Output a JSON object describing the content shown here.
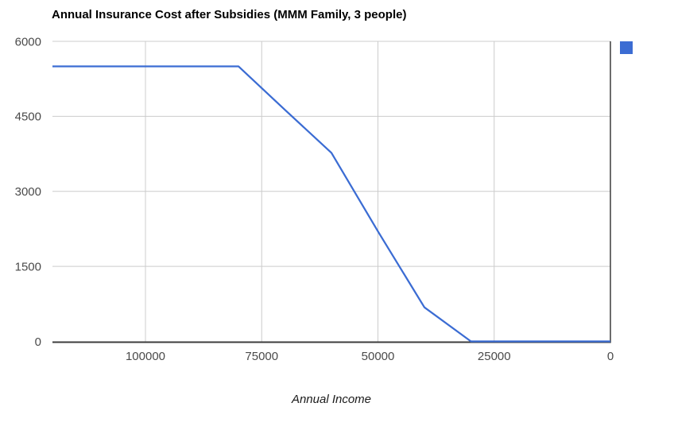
{
  "page": {
    "background_color": "#ffffff"
  },
  "header": {
    "title": "Annual Insurance Cost after Subsidies (MMM Family, 3 people)"
  },
  "chart": {
    "x_axis_title": "Annual Income",
    "colors": {
      "series": "#3b6cd3",
      "gridline": "#cccccc",
      "axis_line": "#3c3c3c",
      "tick_label": "#4a4a4a"
    },
    "legend": {
      "marker_color": "#3b6cd3"
    }
  },
  "chart_data": {
    "type": "line",
    "title": "Annual Insurance Cost after Subsidies (MMM Family, 3 people)",
    "xlabel": "Annual Income",
    "ylabel": "",
    "x_axis_reversed": true,
    "xlim": [
      120000,
      0
    ],
    "ylim": [
      0,
      6000
    ],
    "grid": true,
    "legend_position": "top-right",
    "x_ticks": [
      {
        "value": 100000,
        "label": "100000"
      },
      {
        "value": 75000,
        "label": "75000"
      },
      {
        "value": 50000,
        "label": "50000"
      },
      {
        "value": 25000,
        "label": "25000"
      },
      {
        "value": 0,
        "label": "0"
      }
    ],
    "y_ticks": [
      {
        "value": 6000,
        "label": "6000"
      },
      {
        "value": 4500,
        "label": "4500"
      },
      {
        "value": 3000,
        "label": "3000"
      },
      {
        "value": 1500,
        "label": "1500"
      },
      {
        "value": 0,
        "label": "0"
      }
    ],
    "series": [
      {
        "points": [
          {
            "x": 120000,
            "y": 5500
          },
          {
            "x": 110000,
            "y": 5500
          },
          {
            "x": 100000,
            "y": 5500
          },
          {
            "x": 90000,
            "y": 5500
          },
          {
            "x": 80000,
            "y": 5500
          },
          {
            "x": 70000,
            "y": 4630
          },
          {
            "x": 60000,
            "y": 3770
          },
          {
            "x": 50000,
            "y": 2200
          },
          {
            "x": 40000,
            "y": 680
          },
          {
            "x": 30000,
            "y": 0
          },
          {
            "x": 20000,
            "y": 0
          },
          {
            "x": 10000,
            "y": 0
          },
          {
            "x": 0,
            "y": 0
          }
        ]
      }
    ]
  }
}
